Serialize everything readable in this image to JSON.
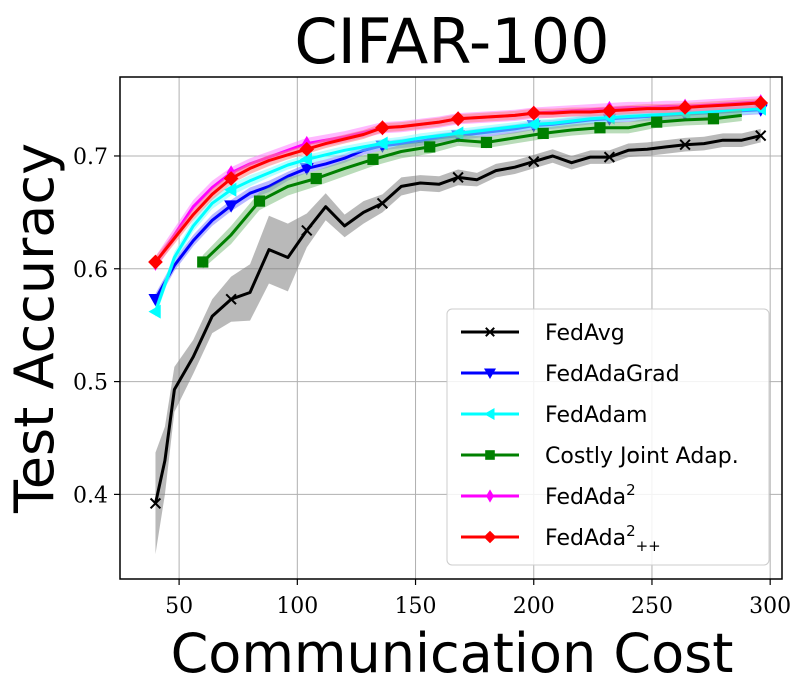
{
  "chart_data": {
    "type": "line",
    "title": "CIFAR-100",
    "xlabel": "Communication Cost",
    "ylabel": "Test Accuracy",
    "xlim": [
      25,
      305
    ],
    "ylim": [
      0.325,
      0.77
    ],
    "xticks": [
      50,
      100,
      150,
      200,
      250,
      300
    ],
    "yticks": [
      0.4,
      0.5,
      0.6,
      0.7
    ],
    "xtick_labels": [
      "50",
      "100",
      "150",
      "200",
      "250",
      "300"
    ],
    "ytick_labels": [
      "0.4",
      "0.5",
      "0.6",
      "0.7"
    ],
    "grid": true,
    "legend_position": "lower-right",
    "series": [
      {
        "name": "FedAvg",
        "color": "#000000",
        "band_color": "#808080",
        "marker": "x",
        "x": [
          40,
          44,
          48,
          56,
          64,
          72,
          80,
          88,
          96,
          104,
          112,
          120,
          128,
          136,
          144,
          152,
          160,
          168,
          176,
          184,
          192,
          200,
          208,
          216,
          224,
          232,
          240,
          248,
          256,
          264,
          272,
          280,
          288,
          296
        ],
        "y": [
          0.392,
          0.43,
          0.493,
          0.522,
          0.558,
          0.573,
          0.579,
          0.617,
          0.61,
          0.634,
          0.655,
          0.638,
          0.65,
          0.658,
          0.673,
          0.676,
          0.675,
          0.681,
          0.679,
          0.687,
          0.69,
          0.695,
          0.7,
          0.694,
          0.699,
          0.699,
          0.705,
          0.706,
          0.708,
          0.71,
          0.711,
          0.714,
          0.714,
          0.718
        ],
        "band": [
          0.045,
          0.03,
          0.02,
          0.015,
          0.015,
          0.02,
          0.025,
          0.03,
          0.03,
          0.015,
          0.012,
          0.01,
          0.01,
          0.008,
          0.008,
          0.007,
          0.007,
          0.007,
          0.006,
          0.006,
          0.006,
          0.006,
          0.006,
          0.006,
          0.006,
          0.006,
          0.006,
          0.006,
          0.006,
          0.006,
          0.006,
          0.006,
          0.006,
          0.006
        ],
        "marker_x": [
          40,
          72,
          104,
          136,
          168,
          200,
          232,
          264,
          296
        ]
      },
      {
        "name": "FedAdaGrad",
        "color": "#0000ff",
        "band_color": "#8080ff",
        "marker": "v",
        "x": [
          40,
          48,
          56,
          64,
          72,
          80,
          88,
          96,
          104,
          112,
          120,
          128,
          136,
          144,
          152,
          160,
          168,
          176,
          184,
          192,
          200,
          208,
          216,
          224,
          232,
          240,
          248,
          256,
          264,
          272,
          280,
          288,
          296
        ],
        "y": [
          0.573,
          0.603,
          0.625,
          0.643,
          0.656,
          0.667,
          0.673,
          0.682,
          0.689,
          0.693,
          0.698,
          0.705,
          0.709,
          0.711,
          0.713,
          0.716,
          0.718,
          0.72,
          0.722,
          0.724,
          0.727,
          0.728,
          0.73,
          0.732,
          0.733,
          0.734,
          0.735,
          0.736,
          0.737,
          0.738,
          0.739,
          0.74,
          0.741
        ],
        "band": [
          0.005,
          0.005,
          0.005,
          0.005,
          0.005,
          0.005,
          0.005,
          0.004,
          0.004,
          0.004,
          0.004,
          0.004,
          0.004,
          0.004,
          0.004,
          0.004,
          0.004,
          0.004,
          0.004,
          0.004,
          0.004,
          0.004,
          0.004,
          0.004,
          0.004,
          0.004,
          0.004,
          0.004,
          0.004,
          0.004,
          0.004,
          0.004,
          0.004
        ],
        "marker_x": [
          40,
          72,
          104,
          136,
          168,
          200,
          232,
          264,
          296
        ]
      },
      {
        "name": "FedAdam",
        "color": "#00ffff",
        "band_color": "#80ffff",
        "marker": "<",
        "x": [
          40,
          48,
          56,
          64,
          72,
          80,
          88,
          96,
          104,
          112,
          120,
          128,
          136,
          144,
          152,
          160,
          168,
          176,
          184,
          192,
          200,
          208,
          216,
          224,
          232,
          240,
          248,
          256,
          264,
          272,
          280,
          288,
          296
        ],
        "y": [
          0.562,
          0.61,
          0.638,
          0.658,
          0.67,
          0.678,
          0.685,
          0.692,
          0.697,
          0.701,
          0.705,
          0.708,
          0.711,
          0.713,
          0.716,
          0.718,
          0.72,
          0.722,
          0.724,
          0.726,
          0.728,
          0.729,
          0.731,
          0.733,
          0.734,
          0.735,
          0.736,
          0.737,
          0.738,
          0.739,
          0.74,
          0.741,
          0.742
        ],
        "band": [
          0.005,
          0.005,
          0.005,
          0.005,
          0.005,
          0.005,
          0.004,
          0.004,
          0.004,
          0.004,
          0.004,
          0.004,
          0.004,
          0.004,
          0.004,
          0.004,
          0.004,
          0.004,
          0.004,
          0.004,
          0.004,
          0.004,
          0.004,
          0.004,
          0.004,
          0.004,
          0.004,
          0.004,
          0.004,
          0.004,
          0.004,
          0.004,
          0.004
        ],
        "marker_x": [
          40,
          72,
          104,
          136,
          168,
          200,
          232,
          264,
          296
        ]
      },
      {
        "name": "Costly Joint Adap.",
        "color": "#008000",
        "band_color": "#80c080",
        "marker": "s",
        "x": [
          60,
          72,
          84,
          96,
          108,
          120,
          132,
          144,
          156,
          168,
          180,
          192,
          204,
          216,
          228,
          240,
          252,
          264,
          276,
          288
        ],
        "y": [
          0.606,
          0.63,
          0.66,
          0.673,
          0.68,
          0.689,
          0.697,
          0.704,
          0.708,
          0.714,
          0.712,
          0.716,
          0.72,
          0.723,
          0.725,
          0.725,
          0.73,
          0.732,
          0.733,
          0.736
        ],
        "band": [
          0.006,
          0.008,
          0.008,
          0.008,
          0.007,
          0.007,
          0.006,
          0.006,
          0.006,
          0.005,
          0.005,
          0.005,
          0.005,
          0.005,
          0.005,
          0.005,
          0.005,
          0.005,
          0.005,
          0.005
        ],
        "marker_x": [
          60,
          84,
          108,
          132,
          156,
          180,
          204,
          228,
          252,
          276
        ]
      },
      {
        "name": "FedAda²",
        "color": "#ff00ff",
        "band_color": "#ff80ff",
        "marker": "d",
        "x": [
          40,
          48,
          56,
          64,
          72,
          80,
          88,
          96,
          104,
          112,
          120,
          128,
          136,
          144,
          152,
          160,
          168,
          176,
          184,
          192,
          200,
          208,
          216,
          224,
          232,
          240,
          248,
          256,
          264,
          272,
          280,
          288,
          296
        ],
        "y": [
          0.605,
          0.63,
          0.655,
          0.672,
          0.685,
          0.693,
          0.699,
          0.705,
          0.711,
          0.714,
          0.717,
          0.721,
          0.725,
          0.726,
          0.728,
          0.73,
          0.733,
          0.734,
          0.735,
          0.736,
          0.738,
          0.739,
          0.74,
          0.741,
          0.742,
          0.743,
          0.743,
          0.744,
          0.744,
          0.745,
          0.746,
          0.747,
          0.748
        ],
        "band": [
          0.006,
          0.006,
          0.006,
          0.006,
          0.005,
          0.005,
          0.005,
          0.005,
          0.005,
          0.005,
          0.005,
          0.005,
          0.005,
          0.005,
          0.005,
          0.005,
          0.005,
          0.005,
          0.005,
          0.005,
          0.005,
          0.005,
          0.005,
          0.005,
          0.005,
          0.005,
          0.005,
          0.005,
          0.005,
          0.005,
          0.005,
          0.005,
          0.005
        ],
        "marker_x": [
          40,
          72,
          104,
          136,
          168,
          200,
          232,
          264,
          296
        ]
      },
      {
        "name": "FedAda²₊₊",
        "color": "#ff0000",
        "band_color": "#ff8080",
        "marker": "D",
        "x": [
          40,
          48,
          56,
          64,
          72,
          80,
          88,
          96,
          104,
          112,
          120,
          128,
          136,
          144,
          152,
          160,
          168,
          176,
          184,
          192,
          200,
          208,
          216,
          224,
          232,
          240,
          248,
          256,
          264,
          272,
          280,
          288,
          296
        ],
        "y": [
          0.606,
          0.627,
          0.648,
          0.666,
          0.68,
          0.689,
          0.696,
          0.701,
          0.706,
          0.711,
          0.715,
          0.719,
          0.725,
          0.726,
          0.728,
          0.73,
          0.733,
          0.734,
          0.735,
          0.736,
          0.738,
          0.738,
          0.739,
          0.739,
          0.74,
          0.741,
          0.742,
          0.742,
          0.743,
          0.744,
          0.745,
          0.746,
          0.747
        ],
        "band": [
          0.005,
          0.005,
          0.005,
          0.005,
          0.005,
          0.005,
          0.005,
          0.004,
          0.004,
          0.004,
          0.004,
          0.004,
          0.004,
          0.004,
          0.004,
          0.004,
          0.004,
          0.004,
          0.004,
          0.004,
          0.004,
          0.004,
          0.004,
          0.004,
          0.004,
          0.004,
          0.004,
          0.004,
          0.004,
          0.004,
          0.004,
          0.004,
          0.004
        ],
        "marker_x": [
          40,
          72,
          104,
          136,
          168,
          200,
          232,
          264,
          296
        ]
      }
    ],
    "legend": {
      "entries": [
        {
          "base": "FedAvg",
          "sup": "",
          "sub": ""
        },
        {
          "base": "FedAdaGrad",
          "sup": "",
          "sub": ""
        },
        {
          "base": "FedAdam",
          "sup": "",
          "sub": ""
        },
        {
          "base": "Costly Joint Adap.",
          "sup": "",
          "sub": ""
        },
        {
          "base": "FedAda",
          "sup": "2",
          "sub": ""
        },
        {
          "base": "FedAda",
          "sup": "2",
          "sub": "++"
        }
      ]
    }
  }
}
